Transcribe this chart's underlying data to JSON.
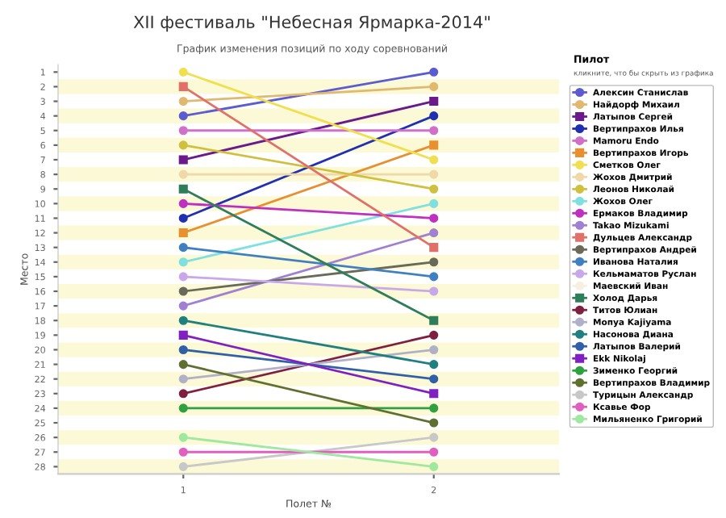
{
  "chart_data": {
    "type": "line",
    "title": "XII фестиваль \"Небесная Ярмарка-2014\"",
    "subtitle": "График изменения позиций по ходу соревнований",
    "xlabel": "Полет №",
    "ylabel": "Место",
    "legend_title": "Пилот",
    "annotations": [
      "кликните, что бы скрыть из графика"
    ],
    "x": [
      1,
      2
    ],
    "xlim": [
      0.5,
      2.5
    ],
    "xticks": [
      1,
      2
    ],
    "ylim": [
      28.5,
      0.5
    ],
    "yticks": [
      1,
      2,
      3,
      4,
      5,
      6,
      7,
      8,
      9,
      10,
      11,
      12,
      13,
      14,
      15,
      16,
      17,
      18,
      19,
      20,
      21,
      22,
      23,
      24,
      25,
      26,
      27,
      28
    ],
    "marker": "circle",
    "legend": "right",
    "grid": false,
    "bands": [
      {
        "axis": "y",
        "from": 1.5,
        "to": 2.5,
        "color": "#fbf9d6"
      },
      {
        "axis": "y",
        "from": 3.5,
        "to": 4.5,
        "color": "#fbf9d6"
      },
      {
        "axis": "y",
        "from": 5.5,
        "to": 6.5,
        "color": "#fbf9d6"
      },
      {
        "axis": "y",
        "from": 7.5,
        "to": 8.5,
        "color": "#fbf9d6"
      },
      {
        "axis": "y",
        "from": 9.5,
        "to": 10.5,
        "color": "#fbf9d6"
      },
      {
        "axis": "y",
        "from": 11.5,
        "to": 12.5,
        "color": "#fbf9d6"
      },
      {
        "axis": "y",
        "from": 13.5,
        "to": 14.5,
        "color": "#fbf9d6"
      },
      {
        "axis": "y",
        "from": 15.5,
        "to": 16.5,
        "color": "#fbf9d6"
      },
      {
        "axis": "y",
        "from": 17.5,
        "to": 18.5,
        "color": "#fbf9d6"
      },
      {
        "axis": "y",
        "from": 19.5,
        "to": 20.5,
        "color": "#fbf9d6"
      },
      {
        "axis": "y",
        "from": 21.5,
        "to": 22.5,
        "color": "#fbf9d6"
      },
      {
        "axis": "y",
        "from": 23.5,
        "to": 24.5,
        "color": "#fbf9d6"
      },
      {
        "axis": "y",
        "from": 25.5,
        "to": 26.5,
        "color": "#fbf9d6"
      },
      {
        "axis": "y",
        "from": 27.5,
        "to": 28.5,
        "color": "#fbf9d6"
      }
    ],
    "series": [
      {
        "name": "Алексин Станислав",
        "color": "#5c5cd0",
        "values": [
          4,
          1
        ]
      },
      {
        "name": "Найдорф Михаил",
        "color": "#e0b870",
        "values": [
          3,
          2
        ]
      },
      {
        "name": "Латыпов Сергей",
        "color": "#6a1a8a",
        "values": [
          7,
          3
        ],
        "marker": "square"
      },
      {
        "name": "Вертипрахов Илья",
        "color": "#2030b0",
        "values": [
          11,
          4
        ]
      },
      {
        "name": "Mamoru Endo",
        "color": "#d070c8",
        "values": [
          5,
          5
        ]
      },
      {
        "name": "Вертипрахов Игорь",
        "color": "#e89030",
        "values": [
          12,
          6
        ],
        "marker": "square"
      },
      {
        "name": "Сметков Олег",
        "color": "#f0e050",
        "values": [
          1,
          7
        ]
      },
      {
        "name": "Жохов Дмитрий",
        "color": "#f0d8a8",
        "values": [
          8,
          8
        ]
      },
      {
        "name": "Леонов Николай",
        "color": "#d0c040",
        "values": [
          6,
          9
        ]
      },
      {
        "name": "Жохов Олег",
        "color": "#80e0e0",
        "values": [
          14,
          10
        ]
      },
      {
        "name": "Ермаков Владимир",
        "color": "#c030c0",
        "values": [
          10,
          11
        ]
      },
      {
        "name": "Takao Mizukami",
        "color": "#a080d0",
        "values": [
          17,
          12
        ]
      },
      {
        "name": "Дульцев Александр",
        "color": "#e07068",
        "values": [
          2,
          13
        ],
        "marker": "square"
      },
      {
        "name": "Вертипрахов Андрей",
        "color": "#6a6a58",
        "values": [
          16,
          14
        ]
      },
      {
        "name": "Иванова Наталия",
        "color": "#4080c0",
        "values": [
          13,
          15
        ]
      },
      {
        "name": "Кельмаматов Руслан",
        "color": "#c8a8e8",
        "values": [
          15,
          16
        ]
      },
      {
        "name": "Маевский Иван",
        "color": "#f5f0e0",
        "values": [
          null,
          null
        ]
      },
      {
        "name": "Холод Дарья",
        "color": "#2e7d5b",
        "values": [
          9,
          18
        ],
        "marker": "square"
      },
      {
        "name": "Титов Юлиан",
        "color": "#802040",
        "values": [
          23,
          19
        ]
      },
      {
        "name": "Мопуа Kajiyama",
        "color": "#b0b0c8",
        "values": [
          22,
          20
        ]
      },
      {
        "name": "Насонова Диана",
        "color": "#208080",
        "values": [
          18,
          21
        ]
      },
      {
        "name": "Латыпов Валерий",
        "color": "#3060a8",
        "values": [
          20,
          22
        ]
      },
      {
        "name": "Ekk Nikolaj",
        "color": "#8020c0",
        "values": [
          19,
          23
        ],
        "marker": "square"
      },
      {
        "name": "Зименко Георгий",
        "color": "#30a040",
        "values": [
          24,
          24
        ]
      },
      {
        "name": "Вертипрахов Владимир",
        "color": "#607030",
        "values": [
          21,
          25
        ]
      },
      {
        "name": "Турицын Александр",
        "color": "#c8c8c8",
        "values": [
          28,
          26
        ]
      },
      {
        "name": "Ксавье Фор",
        "color": "#e060c0",
        "values": [
          27,
          27
        ]
      },
      {
        "name": "Мильяненко Григорий",
        "color": "#a0e8a0",
        "values": [
          26,
          28
        ]
      }
    ]
  }
}
